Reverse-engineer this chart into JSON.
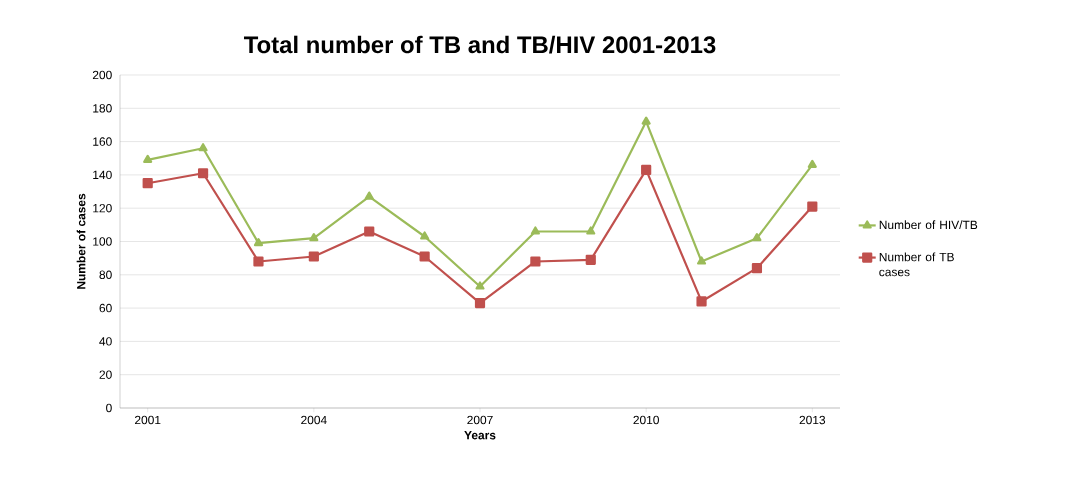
{
  "chart_data": {
    "type": "line",
    "title": "Total number of TB and TB/HIV 2001-2013",
    "xlabel": "Years",
    "ylabel": "Number of cases",
    "x": [
      2001,
      2002,
      2003,
      2004,
      2005,
      2006,
      2007,
      2008,
      2009,
      2010,
      2011,
      2012,
      2013
    ],
    "series": [
      {
        "name": "Number of HIV/TB",
        "color": "#9bbb59",
        "marker": "triangle",
        "values": [
          149,
          156,
          99,
          102,
          127,
          103,
          73,
          106,
          106,
          172,
          88,
          102,
          146
        ]
      },
      {
        "name": "Number of TB cases",
        "color": "#c0504d",
        "marker": "square",
        "values": [
          135,
          141,
          88,
          91,
          106,
          91,
          63,
          88,
          89,
          143,
          64,
          84,
          121
        ]
      }
    ],
    "xlim": [
      2000.5,
      2013.5
    ],
    "xticks": [
      2001,
      2004,
      2007,
      2010,
      2013
    ],
    "ylim": [
      0,
      200
    ],
    "yticks": [
      0,
      20,
      40,
      60,
      80,
      100,
      120,
      140,
      160,
      180,
      200
    ],
    "grid": "y",
    "legend": "right",
    "line_style": "solid"
  }
}
